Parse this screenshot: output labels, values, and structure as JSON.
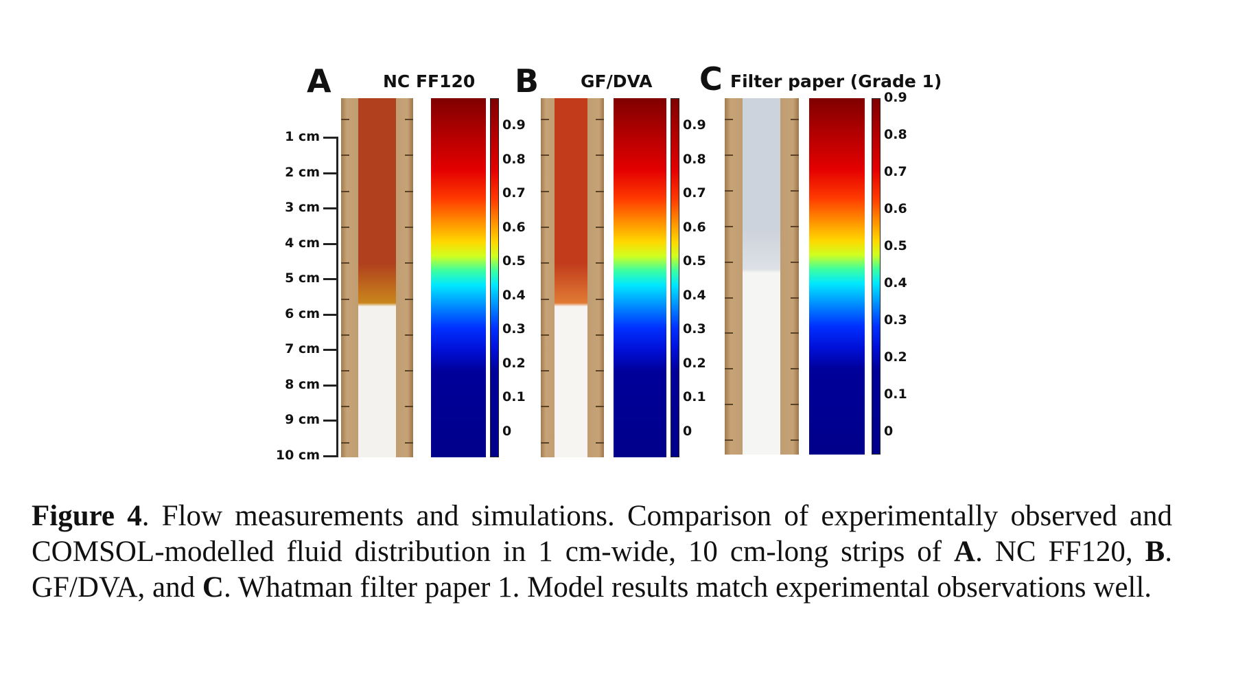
{
  "figure": {
    "ruler": {
      "labels": [
        "1 cm",
        "2 cm",
        "3 cm",
        "4 cm",
        "5 cm",
        "6 cm",
        "7 cm",
        "8 cm",
        "9 cm",
        "10 cm"
      ]
    },
    "panels": [
      {
        "letter": "A",
        "title": "NC FF120",
        "wet_front_fraction": 0.58,
        "paper_wet_color": "#b0401e",
        "paper_front_color": "#c9861c",
        "paper_dry_color": "#f4f2ee",
        "colorbar_labels": [
          "0.9",
          "0.8",
          "0.7",
          "0.6",
          "0.5",
          "0.4",
          "0.3",
          "0.2",
          "0.1",
          "0"
        ]
      },
      {
        "letter": "B",
        "title": "GF/DVA",
        "wet_front_fraction": 0.58,
        "paper_wet_color": "#c23c1c",
        "paper_front_color": "#e07a34",
        "paper_dry_color": "#f6f5f2",
        "colorbar_labels": [
          "0.9",
          "0.8",
          "0.7",
          "0.6",
          "0.5",
          "0.4",
          "0.3",
          "0.2",
          "0.1",
          "0"
        ]
      },
      {
        "letter": "C",
        "title": "Filter paper (Grade 1)",
        "wet_front_fraction": 0.49,
        "paper_wet_color": "#cdd3dc",
        "paper_front_color": "#dde1e6",
        "paper_dry_color": "#f5f5f3",
        "colorbar_labels": [
          "0.9",
          "0.8",
          "0.7",
          "0.6",
          "0.5",
          "0.4",
          "0.3",
          "0.2",
          "0.1",
          "0"
        ]
      }
    ]
  },
  "caption": {
    "label": "Figure 4",
    "text_1": ". Flow measurements and simulations. Comparison of experimentally observed and COMSOL-modelled fluid distribution in 1 cm-wide, 10 cm-long strips of ",
    "ref_a": "A",
    "text_2": ". NC FF120, ",
    "ref_b": "B",
    "text_3": ". GF/DVA, and ",
    "ref_c": "C",
    "text_4": ". Whatman filter paper 1. Model results match experimental observations well."
  }
}
